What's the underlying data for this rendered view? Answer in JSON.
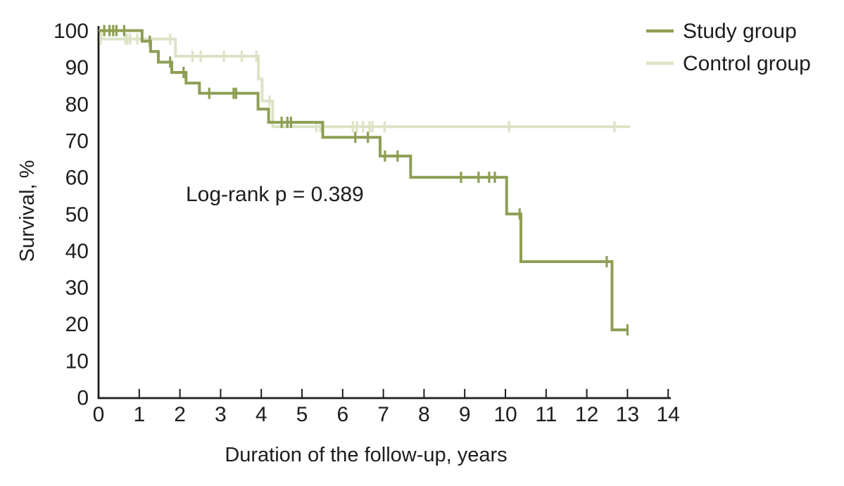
{
  "chart_data": {
    "type": "line",
    "subtype": "kaplan-meier-step-curves",
    "title": "",
    "xlabel": "Duration of the follow-up, years",
    "ylabel": "Survival, %",
    "xlim": [
      0,
      14
    ],
    "ylim": [
      0,
      100
    ],
    "x_ticks": [
      0,
      1,
      2,
      3,
      4,
      5,
      6,
      7,
      8,
      9,
      10,
      11,
      12,
      13,
      14
    ],
    "y_ticks": [
      0,
      10,
      20,
      30,
      40,
      50,
      60,
      70,
      80,
      90,
      100
    ],
    "grid": false,
    "legend_position": "top-right",
    "annotation": "Log-rank p = 0.389",
    "series": [
      {
        "name": "Control group",
        "color": "#dde3c6",
        "steps_t_percent": [
          [
            0,
            100
          ],
          [
            0.06,
            97.7
          ],
          [
            1.89,
            93.0
          ],
          [
            3.93,
            86.8
          ],
          [
            4.02,
            80.8
          ],
          [
            4.28,
            73.8
          ]
        ],
        "end_t": 13.06,
        "censor_marks_t_percent": [
          [
            0.05,
            97.7
          ],
          [
            0.66,
            97.7
          ],
          [
            0.71,
            97.7
          ],
          [
            0.78,
            97.7
          ],
          [
            0.95,
            97.7
          ],
          [
            1.76,
            97.7
          ],
          [
            2.31,
            93.0
          ],
          [
            2.51,
            93.0
          ],
          [
            3.08,
            93.0
          ],
          [
            3.52,
            93.0
          ],
          [
            3.88,
            93.0
          ],
          [
            4.2,
            80.8
          ],
          [
            5.35,
            73.8
          ],
          [
            5.45,
            73.8
          ],
          [
            6.25,
            73.8
          ],
          [
            6.35,
            73.8
          ],
          [
            6.5,
            73.8
          ],
          [
            6.66,
            73.8
          ],
          [
            6.73,
            73.8
          ],
          [
            7.03,
            73.8
          ],
          [
            10.09,
            73.8
          ],
          [
            12.68,
            73.8
          ]
        ]
      },
      {
        "name": "Study group",
        "color": "#8e9f55",
        "steps_t_percent": [
          [
            0,
            100
          ],
          [
            1.07,
            97.1
          ],
          [
            1.28,
            94.3
          ],
          [
            1.47,
            91.4
          ],
          [
            1.8,
            88.6
          ],
          [
            2.15,
            85.7
          ],
          [
            2.48,
            82.9
          ],
          [
            3.92,
            78.6
          ],
          [
            4.18,
            75.0
          ],
          [
            5.51,
            70.9
          ],
          [
            6.92,
            65.8
          ],
          [
            7.67,
            60.0
          ],
          [
            10.03,
            50.0
          ],
          [
            10.38,
            37.0
          ],
          [
            12.62,
            18.4
          ]
        ],
        "end_t": 13.03,
        "censor_marks_t_percent": [
          [
            0.14,
            100
          ],
          [
            0.27,
            100
          ],
          [
            0.36,
            100
          ],
          [
            0.44,
            100
          ],
          [
            0.63,
            100
          ],
          [
            1.26,
            97.1
          ],
          [
            1.76,
            91.4
          ],
          [
            2.09,
            88.6
          ],
          [
            2.72,
            82.9
          ],
          [
            3.32,
            82.9
          ],
          [
            3.38,
            82.9
          ],
          [
            4.5,
            75.0
          ],
          [
            4.64,
            75.0
          ],
          [
            4.73,
            75.0
          ],
          [
            6.31,
            70.9
          ],
          [
            6.62,
            70.9
          ],
          [
            7.04,
            65.8
          ],
          [
            7.35,
            65.8
          ],
          [
            8.91,
            60.0
          ],
          [
            9.34,
            60.0
          ],
          [
            9.6,
            60.0
          ],
          [
            9.74,
            60.0
          ],
          [
            10.35,
            50.0
          ],
          [
            12.49,
            37.0
          ],
          [
            13.0,
            18.4
          ]
        ]
      }
    ]
  }
}
